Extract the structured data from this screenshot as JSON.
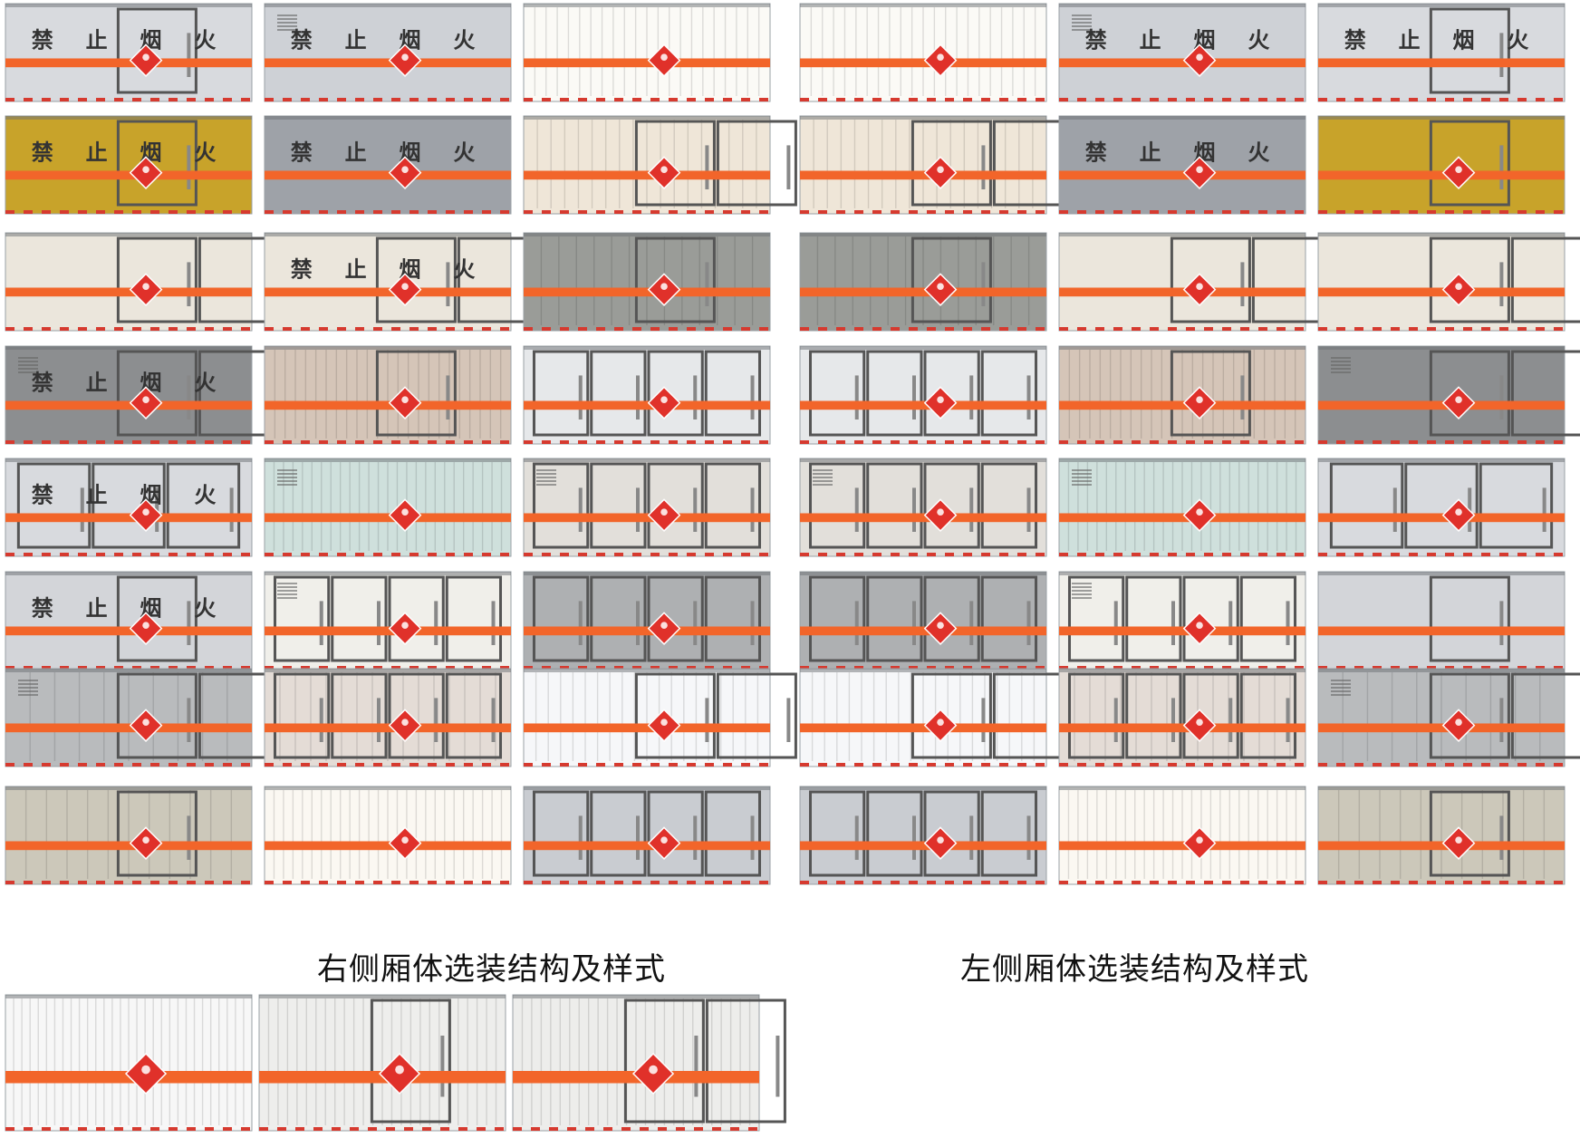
{
  "captions": {
    "right_side": "右侧厢体选装结构及样式",
    "left_side": "左侧厢体选装结构及样式"
  },
  "colors": {
    "stripe": "#f2652a",
    "diamond": "#e0312a",
    "door_frame": "#555555",
    "wheel_cutout": "#111111"
  },
  "no_smoking_chars": [
    "禁",
    "止",
    "烟",
    "火"
  ],
  "panel_groups": {
    "right_side_panels": [
      {
        "body": "#d8dade",
        "ribs": 0,
        "doors": 1,
        "text": true,
        "diamond": true,
        "louver": false
      },
      {
        "body": "#ced1d6",
        "ribs": 0,
        "doors": 0,
        "text": true,
        "diamond": true,
        "louver": true
      },
      {
        "body": "#fbfaf6",
        "ribs": 22,
        "doors": 0,
        "text": false,
        "diamond": true,
        "louver": false
      },
      {
        "body": "#c8a32a",
        "ribs": 0,
        "doors": 1,
        "text": true,
        "diamond": true,
        "louver": false
      },
      {
        "body": "#9ea2a8",
        "ribs": 0,
        "doors": 0,
        "text": true,
        "diamond": true,
        "louver": false
      },
      {
        "body": "#efe6d8",
        "ribs": 18,
        "doors": 2,
        "text": false,
        "diamond": true,
        "louver": false
      },
      {
        "body": "#ebe6dc",
        "ribs": 0,
        "doors": 2,
        "text": false,
        "diamond": true,
        "louver": false
      },
      {
        "body": "#ebe6dc",
        "ribs": 0,
        "doors": 2,
        "text": true,
        "diamond": true,
        "louver": false
      },
      {
        "body": "#9a9c98",
        "ribs": 14,
        "doors": 1,
        "text": false,
        "diamond": true,
        "louver": false
      },
      {
        "body": "#8c8e90",
        "ribs": 0,
        "doors": 2,
        "text": true,
        "diamond": true,
        "louver": true
      },
      {
        "body": "#d5c5b8",
        "ribs": 24,
        "doors": 1,
        "text": false,
        "diamond": true,
        "louver": false
      },
      {
        "body": "#e6e8ea",
        "ribs": 0,
        "doors": 4,
        "text": false,
        "diamond": true,
        "louver": false
      },
      {
        "body": "#d8dade",
        "ribs": 0,
        "doors": 3,
        "text": true,
        "diamond": true,
        "louver": false
      },
      {
        "body": "#cfe0dc",
        "ribs": 26,
        "doors": 0,
        "text": false,
        "diamond": true,
        "louver": true
      },
      {
        "body": "#e2dfda",
        "ribs": 0,
        "doors": 4,
        "text": false,
        "diamond": true,
        "louver": true
      },
      {
        "body": "#d3d5d9",
        "ribs": 0,
        "doors": 1,
        "text": true,
        "diamond": true,
        "louver": false
      },
      {
        "body": "#f0efea",
        "ribs": 0,
        "doors": 4,
        "text": false,
        "diamond": true,
        "louver": true
      },
      {
        "body": "#aeb0b2",
        "ribs": 0,
        "doors": 4,
        "text": false,
        "diamond": true,
        "louver": false
      },
      {
        "body": "#b9bbbd",
        "ribs": 10,
        "doors": 2,
        "text": false,
        "diamond": true,
        "louver": true
      },
      {
        "body": "#e4dcd6",
        "ribs": 16,
        "doors": 4,
        "text": false,
        "diamond": true,
        "louver": false
      },
      {
        "body": "#f6f7f9",
        "ribs": 20,
        "doors": 2,
        "text": false,
        "diamond": true,
        "louver": false
      },
      {
        "body": "#ccc8ba",
        "ribs": 12,
        "doors": 1,
        "text": false,
        "diamond": true,
        "louver": false
      },
      {
        "body": "#fbf8f2",
        "ribs": 26,
        "doors": 0,
        "text": false,
        "diamond": true,
        "louver": false
      },
      {
        "body": "#c9ccd1",
        "ribs": 0,
        "doors": 4,
        "text": false,
        "diamond": true,
        "louver": false
      }
    ],
    "left_side_panels": [
      {
        "body": "#fbfaf6",
        "ribs": 22,
        "doors": 0,
        "text": false,
        "diamond": true,
        "louver": false
      },
      {
        "body": "#ced1d6",
        "ribs": 0,
        "doors": 0,
        "text": true,
        "diamond": true,
        "louver": true
      },
      {
        "body": "#d8dade",
        "ribs": 0,
        "doors": 1,
        "text": true,
        "diamond": false,
        "louver": false
      },
      {
        "body": "#efe6d8",
        "ribs": 18,
        "doors": 2,
        "text": false,
        "diamond": true,
        "louver": false
      },
      {
        "body": "#9ea2a8",
        "ribs": 0,
        "doors": 0,
        "text": true,
        "diamond": true,
        "louver": false
      },
      {
        "body": "#c8a32a",
        "ribs": 0,
        "doors": 1,
        "text": false,
        "diamond": true,
        "louver": false
      },
      {
        "body": "#9a9c98",
        "ribs": 14,
        "doors": 1,
        "text": false,
        "diamond": true,
        "louver": false
      },
      {
        "body": "#ebe6dc",
        "ribs": 0,
        "doors": 2,
        "text": false,
        "diamond": true,
        "louver": false
      },
      {
        "body": "#ebe6dc",
        "ribs": 0,
        "doors": 2,
        "text": false,
        "diamond": true,
        "louver": false
      },
      {
        "body": "#e6e8ea",
        "ribs": 0,
        "doors": 4,
        "text": false,
        "diamond": true,
        "louver": false
      },
      {
        "body": "#d5c5b8",
        "ribs": 24,
        "doors": 1,
        "text": false,
        "diamond": true,
        "louver": false
      },
      {
        "body": "#8c8e90",
        "ribs": 0,
        "doors": 2,
        "text": false,
        "diamond": true,
        "louver": true
      },
      {
        "body": "#e2dfda",
        "ribs": 0,
        "doors": 4,
        "text": false,
        "diamond": true,
        "louver": true
      },
      {
        "body": "#cfe0dc",
        "ribs": 26,
        "doors": 0,
        "text": false,
        "diamond": true,
        "louver": true
      },
      {
        "body": "#d8dade",
        "ribs": 0,
        "doors": 3,
        "text": false,
        "diamond": true,
        "louver": false
      },
      {
        "body": "#aeb0b2",
        "ribs": 0,
        "doors": 4,
        "text": false,
        "diamond": true,
        "louver": false
      },
      {
        "body": "#f0efea",
        "ribs": 0,
        "doors": 4,
        "text": false,
        "diamond": true,
        "louver": true
      },
      {
        "body": "#d3d5d9",
        "ribs": 0,
        "doors": 1,
        "text": false,
        "diamond": false,
        "louver": false
      },
      {
        "body": "#f6f7f9",
        "ribs": 20,
        "doors": 2,
        "text": false,
        "diamond": true,
        "louver": false
      },
      {
        "body": "#e4dcd6",
        "ribs": 16,
        "doors": 4,
        "text": false,
        "diamond": true,
        "louver": false
      },
      {
        "body": "#b9bbbd",
        "ribs": 10,
        "doors": 2,
        "text": false,
        "diamond": true,
        "louver": true
      },
      {
        "body": "#c9ccd1",
        "ribs": 0,
        "doors": 4,
        "text": false,
        "diamond": true,
        "louver": false
      },
      {
        "body": "#fbf8f2",
        "ribs": 26,
        "doors": 0,
        "text": false,
        "diamond": true,
        "louver": false
      },
      {
        "body": "#ccc8ba",
        "ribs": 12,
        "doors": 1,
        "text": false,
        "diamond": true,
        "louver": false
      }
    ],
    "extra_panels": [
      {
        "body": "#f7f7f7",
        "ribs": 30,
        "doors": 0,
        "text": false,
        "diamond": true,
        "louver": false
      },
      {
        "body": "#eeeeec",
        "ribs": 26,
        "doors": 1,
        "text": false,
        "diamond": true,
        "louver": false
      },
      {
        "body": "#ededeb",
        "ribs": 26,
        "doors": 2,
        "text": false,
        "diamond": true,
        "louver": false
      }
    ]
  }
}
